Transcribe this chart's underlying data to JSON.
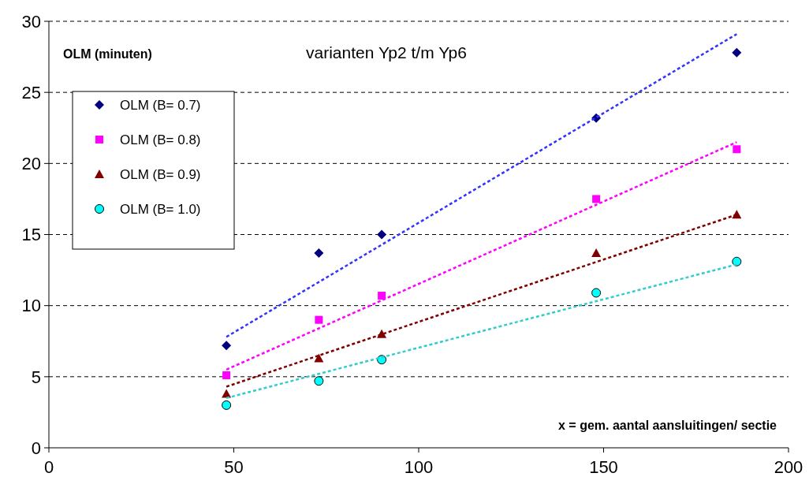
{
  "chart_data": {
    "type": "scatter",
    "title": "varianten Yp2 t/m Yp6",
    "ylabel": "OLM (minuten)",
    "xlabel": "x = gem. aantal aansluitingen/ sectie",
    "xlim": [
      0,
      200
    ],
    "xticks": [
      0,
      50,
      100,
      150,
      200
    ],
    "ylim": [
      0,
      30
    ],
    "yticks": [
      0,
      5,
      10,
      15,
      20,
      25,
      30
    ],
    "grid": "y",
    "legend": "top left",
    "series": [
      {
        "name": "OLM (B= 0.7)",
        "color": "#000080",
        "marker": "diamond",
        "x": [
          48,
          73,
          90,
          148,
          186
        ],
        "values": [
          7.2,
          13.7,
          15.0,
          23.2,
          27.8
        ]
      },
      {
        "name": "OLM (B= 0.8)",
        "color": "#ff00ff",
        "marker": "square",
        "x": [
          48,
          73,
          90,
          148,
          186
        ],
        "values": [
          5.1,
          9.0,
          10.7,
          17.5,
          21.0
        ]
      },
      {
        "name": "OLM (B= 0.9)",
        "color": "#800000",
        "marker": "triangle",
        "x": [
          48,
          73,
          90,
          148,
          186
        ],
        "values": [
          3.8,
          6.3,
          8.0,
          13.7,
          16.4
        ]
      },
      {
        "name": "OLM (B= 1.0)",
        "color": "#00ffff",
        "marker": "circle",
        "x": [
          48,
          73,
          90,
          148,
          186
        ],
        "values": [
          3.0,
          4.7,
          6.2,
          10.9,
          13.1
        ]
      },
      {
        "type": "line",
        "color": "#3333ff",
        "line_style": "dashed",
        "marker": "none",
        "x": [
          48,
          186
        ],
        "values": [
          7.8,
          29.1
        ]
      },
      {
        "type": "line",
        "color": "#ff00ff",
        "line_style": "dashed",
        "marker": "none",
        "x": [
          48,
          186
        ],
        "values": [
          5.5,
          21.5
        ]
      },
      {
        "type": "line",
        "color": "#800000",
        "line_style": "dashed",
        "marker": "none",
        "x": [
          48,
          186
        ],
        "values": [
          4.3,
          16.4
        ]
      },
      {
        "type": "line",
        "color": "#33cccc",
        "line_style": "dashed",
        "marker": "none",
        "x": [
          48,
          186
        ],
        "values": [
          3.5,
          12.9
        ]
      }
    ]
  }
}
